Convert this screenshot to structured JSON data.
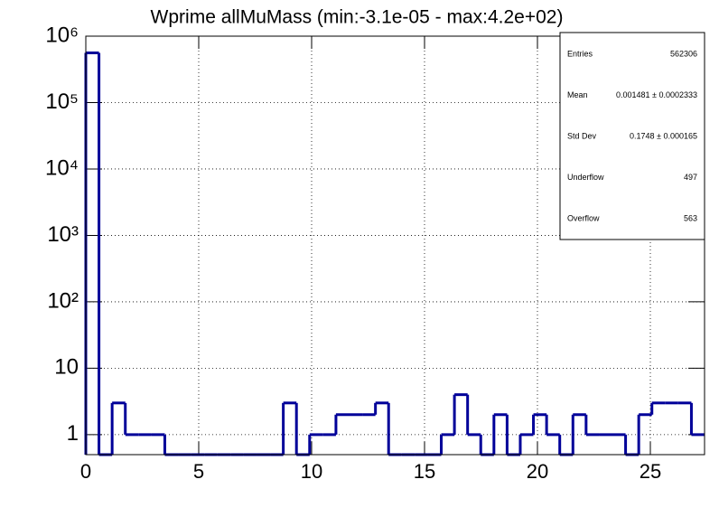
{
  "chart_data": {
    "type": "histogram",
    "title": "Wprime allMuMass (min:-3.1e-05 - max:4.2e+02)",
    "bins": [
      0,
      0.583,
      1.166,
      1.749,
      2.332,
      2.915,
      3.498,
      4.081,
      4.664,
      5.247,
      5.83,
      6.413,
      6.996,
      7.579,
      8.162,
      8.745,
      9.328,
      9.911,
      10.494,
      11.077,
      11.66,
      12.243,
      12.826,
      13.409,
      13.992,
      14.575,
      15.158,
      15.741,
      16.324,
      16.907,
      17.49,
      18.073,
      18.656,
      19.239,
      19.822,
      20.405,
      20.988,
      21.571,
      22.154,
      22.737,
      23.32,
      23.903,
      24.486,
      25.069,
      25.652,
      26.235,
      26.818,
      27.401
    ],
    "values": [
      560000,
      0,
      3,
      1,
      1,
      1,
      0,
      0,
      0,
      0,
      0,
      0,
      0,
      0,
      0,
      3,
      0,
      1,
      1,
      2,
      2,
      2,
      3,
      0,
      0,
      0,
      0,
      1,
      4,
      1,
      0,
      2,
      0,
      1,
      2,
      1,
      0,
      2,
      1,
      1,
      1,
      0,
      2,
      3,
      3,
      3,
      1
    ],
    "color": "#000099",
    "xlim": [
      0,
      27.4
    ],
    "xticks": [
      0,
      5,
      10,
      15,
      20,
      25
    ],
    "ylim": [
      0.5,
      1000000
    ],
    "yticks": [
      1,
      10,
      {
        "value": 100,
        "label": "10²"
      },
      {
        "value": 1000,
        "label": "10³"
      },
      {
        "value": 10000,
        "label": "10⁴"
      },
      {
        "value": 100000,
        "label": "10⁵"
      },
      {
        "value": 1000000,
        "label": "10⁶"
      }
    ],
    "log_y": true,
    "grid": true,
    "stats": [
      [
        "Entries",
        "562306"
      ],
      [
        "Mean",
        "0.001481 ± 0.0002333"
      ],
      [
        "Std Dev",
        "0.1748 ± 0.000165"
      ],
      [
        "Underflow",
        "497"
      ],
      [
        "Overflow",
        "563"
      ]
    ]
  }
}
